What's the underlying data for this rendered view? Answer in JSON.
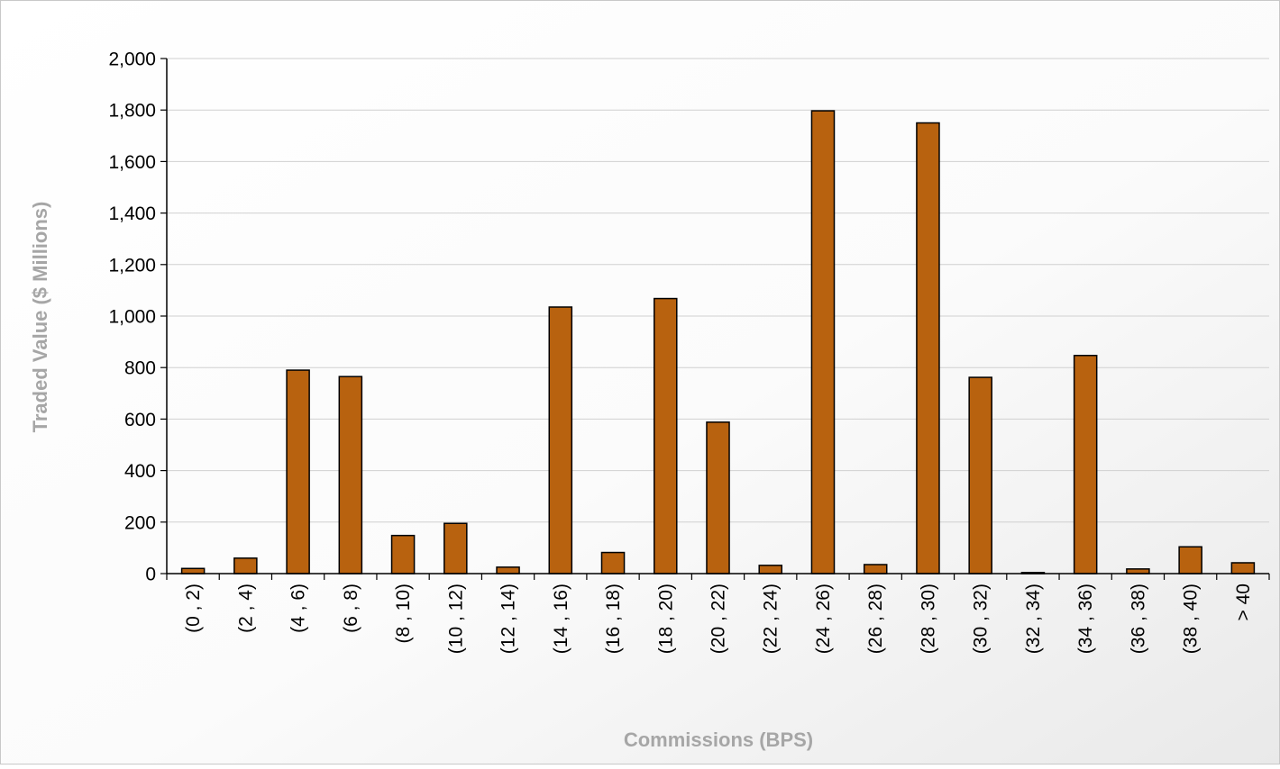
{
  "chart_data": {
    "type": "bar",
    "title": "",
    "xlabel": "Commissions (BPS)",
    "ylabel": "Traded Value ($ Millions)",
    "ylim": [
      0,
      2000
    ],
    "yticks": [
      0,
      200,
      400,
      600,
      800,
      1000,
      1200,
      1400,
      1600,
      1800,
      2000
    ],
    "ytick_labels": [
      "0",
      "200",
      "400",
      "600",
      "800",
      "1,000",
      "1,200",
      "1,400",
      "1,600",
      "1,800",
      "2,000"
    ],
    "grid": true,
    "legend": "none",
    "bar_color": "#B8620F",
    "categories": [
      "(0 , 2)",
      "(2 , 4)",
      "(4 , 6)",
      "(6 , 8)",
      "(8 , 10)",
      "(10 , 12)",
      "(12 , 14)",
      "(14 , 16)",
      "(16 , 18)",
      "(18 , 20)",
      "(20 , 22)",
      "(22 , 24)",
      "(24 , 26)",
      "(26 , 28)",
      "(28 , 30)",
      "(30 , 32)",
      "(32 , 34)",
      "(34 , 36)",
      "(36 , 38)",
      "(38 , 40)",
      "> 40"
    ],
    "values": [
      20,
      60,
      790,
      765,
      148,
      195,
      25,
      1035,
      82,
      1068,
      588,
      32,
      1797,
      35,
      1750,
      762,
      4,
      847,
      18,
      104,
      42
    ]
  }
}
